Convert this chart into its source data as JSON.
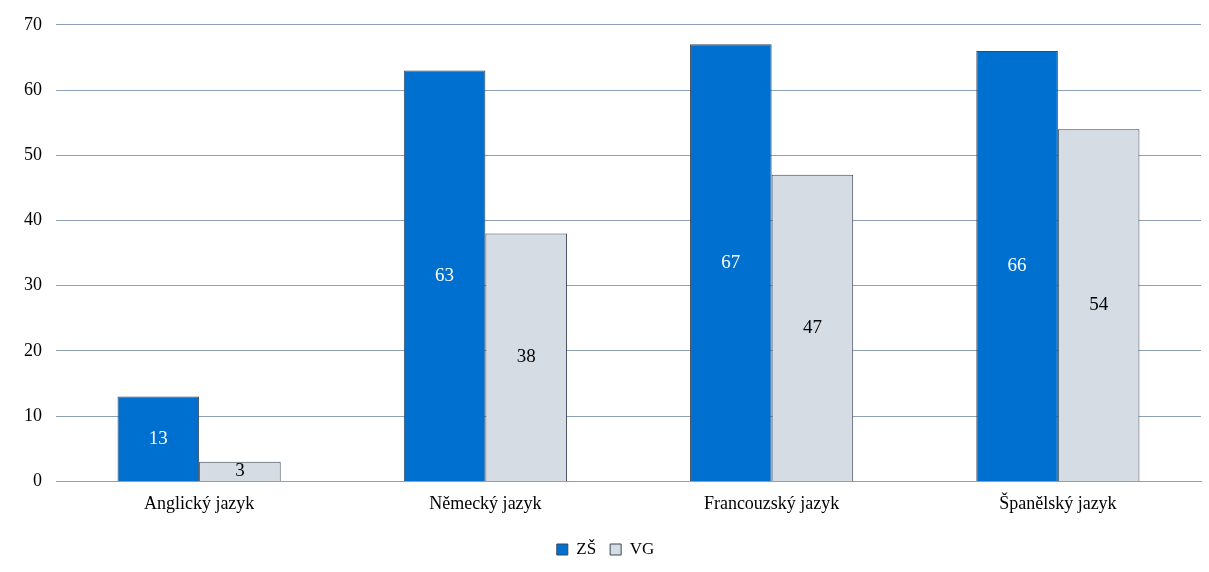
{
  "chart_data": {
    "type": "bar",
    "categories": [
      "Anglický jazyk",
      "Německý jazyk",
      "Francouzský jazyk",
      "Španělský jazyk"
    ],
    "series": [
      {
        "name": "ZŠ",
        "color": "#0070d0",
        "values": [
          13,
          63,
          67,
          66
        ]
      },
      {
        "name": "VG",
        "color": "#d6dce4",
        "values": [
          3,
          38,
          47,
          54
        ]
      }
    ],
    "ylim": [
      0,
      70
    ],
    "yticks": [
      0,
      10,
      20,
      30,
      40,
      50,
      60,
      70
    ],
    "grid": "y",
    "legend": "bottom",
    "data_labels": true
  }
}
